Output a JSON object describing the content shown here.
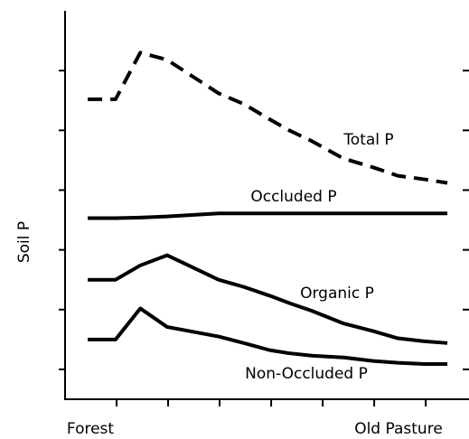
{
  "chart_data": {
    "type": "line",
    "ylabel": "Soil P",
    "x_labels": {
      "start": "Forest",
      "end": "Old Pasture"
    },
    "x": [
      0.44,
      0.98,
      1.46,
      1.98,
      2.98,
      3.47,
      3.98,
      4.35,
      4.79,
      5.4,
      5.98,
      6.46,
      6.98,
      7.42
    ],
    "series": [
      {
        "name": "Total P",
        "color": "#000000",
        "style": "dashed",
        "values": [
          5.02,
          5.02,
          5.8,
          5.68,
          5.12,
          4.94,
          4.68,
          4.5,
          4.32,
          4.03,
          3.88,
          3.74,
          3.68,
          3.62
        ]
      },
      {
        "name": "Occluded P",
        "color": "#000000",
        "style": "solid",
        "values": [
          3.03,
          3.03,
          3.04,
          3.06,
          3.11,
          3.11,
          3.11,
          3.11,
          3.11,
          3.11,
          3.11,
          3.11,
          3.11,
          3.11
        ]
      },
      {
        "name": "Organic P",
        "color": "#000000",
        "style": "solid",
        "values": [
          2.0,
          2.0,
          2.24,
          2.41,
          2.0,
          1.88,
          1.73,
          1.61,
          1.48,
          1.27,
          1.14,
          1.02,
          0.97,
          0.94
        ]
      },
      {
        "name": "Non-Occluded P",
        "color": "#000000",
        "style": "solid",
        "values": [
          1.0,
          1.0,
          1.52,
          1.21,
          1.05,
          0.94,
          0.82,
          0.77,
          0.73,
          0.7,
          0.64,
          0.61,
          0.59,
          0.59
        ]
      }
    ],
    "xlim": [
      0,
      7.84
    ],
    "ylim": [
      0,
      6.5
    ],
    "xticks": [
      1,
      2,
      3,
      4,
      5,
      6,
      7
    ],
    "yticks": [
      0.5,
      1.5,
      2.5,
      3.5,
      4.5,
      5.5
    ],
    "grid": false
  }
}
